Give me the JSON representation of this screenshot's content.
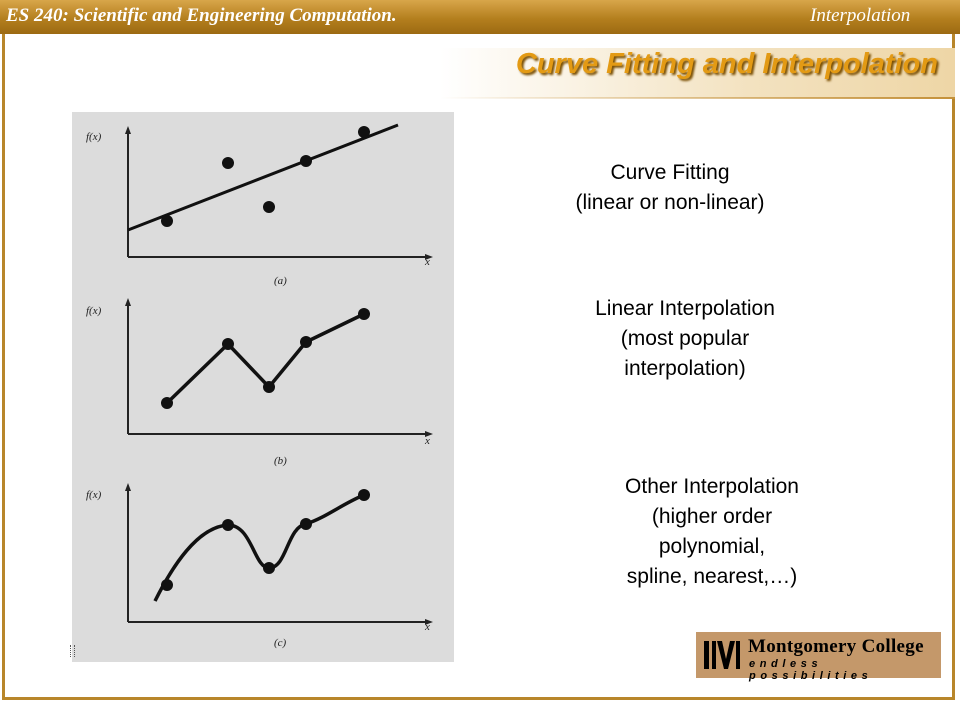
{
  "header": {
    "course": "ES 240: Scientific and Engineering Computation.",
    "topic": "Interpolation"
  },
  "slide": {
    "title": "Curve Fitting and Interpolation"
  },
  "figure": {
    "panels": [
      {
        "caption": "(a)",
        "ylabel": "f(x)",
        "xlabel": "x"
      },
      {
        "caption": "(b)",
        "ylabel": "f(x)",
        "xlabel": "x"
      },
      {
        "caption": "(c)",
        "ylabel": "f(x)",
        "xlabel": "x"
      }
    ]
  },
  "labels": {
    "curve_fitting": [
      "Curve Fitting",
      "(linear or non-linear)"
    ],
    "linear_interp": [
      "Linear Interpolation",
      "(most popular",
      "interpolation)"
    ],
    "other_interp": [
      "Other Interpolation",
      "(higher order",
      "polynomial,",
      "spline, nearest,…)"
    ]
  },
  "logo": {
    "name": "Montgomery College",
    "tagline": "endless possibilities"
  },
  "colors": {
    "header_bar": "#b47f1e",
    "title": "#e39a14",
    "frame": "#b8862a",
    "logo_bg": "#c4986a"
  }
}
